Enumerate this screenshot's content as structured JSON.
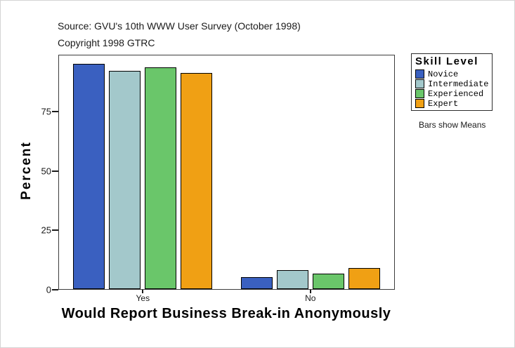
{
  "annotations": {
    "source": "Source: GVU's 10th WWW User Survey (October 1998)",
    "copyright": "Copyright 1998 GTRC",
    "note": "Bars show Means"
  },
  "chart_data": {
    "type": "bar",
    "title": "",
    "xlabel": "Would Report Business Break-in Anonymously",
    "ylabel": "Percent",
    "categories": [
      "Yes",
      "No"
    ],
    "series": [
      {
        "name": "Novice",
        "color": "#3A60C0",
        "values": [
          95,
          5
        ]
      },
      {
        "name": "Intermediate",
        "color": "#A3C8CB",
        "values": [
          92,
          8
        ]
      },
      {
        "name": "Experienced",
        "color": "#6AC66A",
        "values": [
          93.5,
          6.5
        ]
      },
      {
        "name": "Expert",
        "color": "#F0A014",
        "values": [
          91,
          9
        ]
      }
    ],
    "ylim": [
      0,
      99
    ],
    "yticks": [
      0,
      25,
      50,
      75
    ],
    "grid": false,
    "legend_title": "Skill Level",
    "legend_position": "right"
  }
}
